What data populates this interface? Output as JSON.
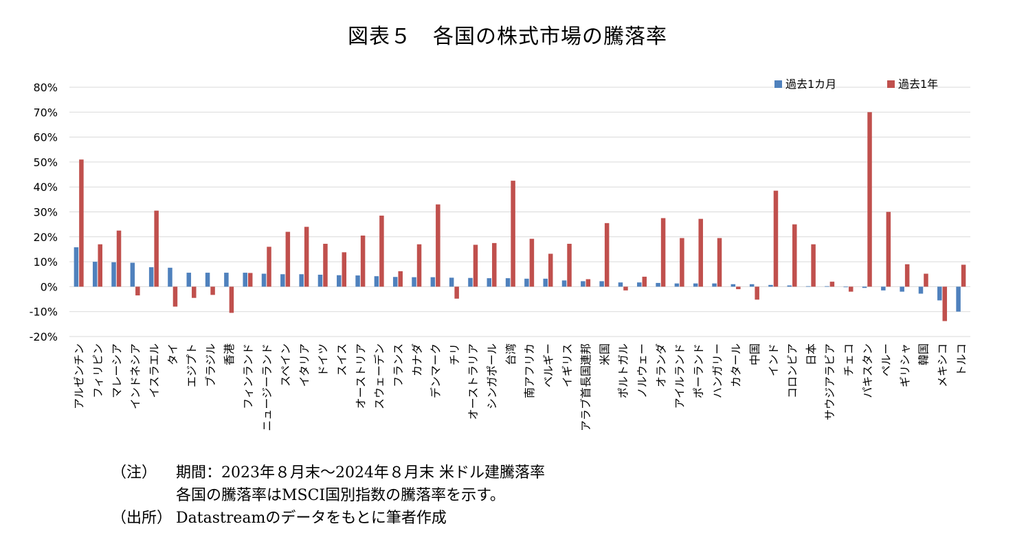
{
  "title": "図表５　各国の株式市場の騰落率",
  "chart_data": {
    "type": "bar",
    "categories": [
      "アルゼンチン",
      "フィリピン",
      "マレーシア",
      "インドネシア",
      "イスラエル",
      "タイ",
      "エジプト",
      "ブラジル",
      "香港",
      "フィンランド",
      "ニュージーランド",
      "スペイン",
      "イタリア",
      "ドイツ",
      "スイス",
      "オーストリア",
      "スウェーデン",
      "フランス",
      "カナダ",
      "デンマーク",
      "チリ",
      "オーストラリア",
      "シンガポール",
      "台湾",
      "南アフリカ",
      "ベルギー",
      "イギリス",
      "アラブ首長国連邦",
      "米国",
      "ポルトガル",
      "ノルウェー",
      "オランダ",
      "アイルランド",
      "ポーランド",
      "ハンガリー",
      "カタール",
      "中国",
      "インド",
      "コロンビア",
      "日本",
      "サウジアラビア",
      "チェコ",
      "パキスタン",
      "ペルー",
      "ギリシャ",
      "韓国",
      "メキシコ",
      "トルコ"
    ],
    "series": [
      {
        "name": "過去1カ月",
        "color": "#4f81bd",
        "values": [
          15.8,
          10.0,
          9.8,
          9.6,
          7.8,
          7.6,
          5.6,
          5.6,
          5.6,
          5.6,
          5.2,
          5.0,
          5.0,
          4.8,
          4.6,
          4.5,
          4.2,
          3.9,
          3.8,
          3.8,
          3.6,
          3.5,
          3.4,
          3.4,
          3.2,
          3.2,
          2.5,
          2.2,
          2.2,
          1.7,
          1.7,
          1.5,
          1.3,
          1.3,
          1.3,
          1.0,
          1.0,
          0.7,
          0.5,
          0.2,
          0.2,
          -0.2,
          -0.5,
          -1.5,
          -2.0,
          -2.8,
          -5.5,
          -10.0
        ]
      },
      {
        "name": "過去1年",
        "color": "#c0504d",
        "values": [
          51.0,
          17.0,
          22.5,
          -3.5,
          30.5,
          -8.0,
          -4.5,
          -3.3,
          -10.5,
          5.5,
          16.0,
          22.0,
          24.0,
          17.2,
          13.8,
          20.5,
          28.5,
          6.2,
          17.0,
          33.0,
          -4.8,
          16.8,
          17.5,
          42.5,
          19.2,
          13.2,
          17.2,
          3.0,
          25.5,
          -1.5,
          4.0,
          27.5,
          19.5,
          27.2,
          19.5,
          -1.0,
          -5.2,
          38.5,
          25.0,
          17.0,
          2.0,
          -2.0,
          70.0,
          30.0,
          9.0,
          5.2,
          -13.8,
          8.8
        ]
      }
    ],
    "ylim": [
      -20,
      80
    ],
    "yticks": [
      -20,
      -10,
      0,
      10,
      20,
      30,
      40,
      50,
      60,
      70,
      80
    ],
    "ytick_labels": [
      "-20%",
      "-10%",
      "0%",
      "10%",
      "20%",
      "30%",
      "40%",
      "50%",
      "60%",
      "70%",
      "80%"
    ],
    "grid": true,
    "legend_position": "top-right"
  },
  "notes": [
    {
      "label": "（注）",
      "text": "期間：2023年８月末～2024年８月末 米ドル建騰落率"
    },
    {
      "label": "",
      "text": "各国の騰落率はMSCI国別指数の騰落率を示す。"
    },
    {
      "label": "（出所）",
      "text": "Datastreamのデータをもとに筆者作成"
    }
  ]
}
